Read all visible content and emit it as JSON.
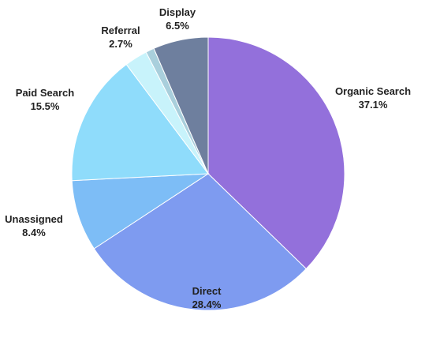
{
  "chart_data": {
    "type": "pie",
    "title": "",
    "start": "top",
    "direction": "clockwise",
    "slices": [
      {
        "label": "Organic Search",
        "value": 37.1,
        "value_label": "37.1%",
        "color": "#9370db"
      },
      {
        "label": "Direct",
        "value": 28.4,
        "value_label": "28.4%",
        "color": "#7e9bf0"
      },
      {
        "label": "Unassigned",
        "value": 8.4,
        "value_label": "8.4%",
        "color": "#7dbdf6"
      },
      {
        "label": "Paid Search",
        "value": 15.5,
        "value_label": "15.5%",
        "color": "#8fdcfb"
      },
      {
        "label": "Referral",
        "value": 2.7,
        "value_label": "2.7%",
        "color": "#c8f3fb"
      },
      {
        "label": "",
        "value": 1.0,
        "value_label": "",
        "color": "#a9cfdc"
      },
      {
        "label": "Display",
        "value": 6.5,
        "value_label": "6.5%",
        "color": "#6e7f9e"
      }
    ]
  }
}
